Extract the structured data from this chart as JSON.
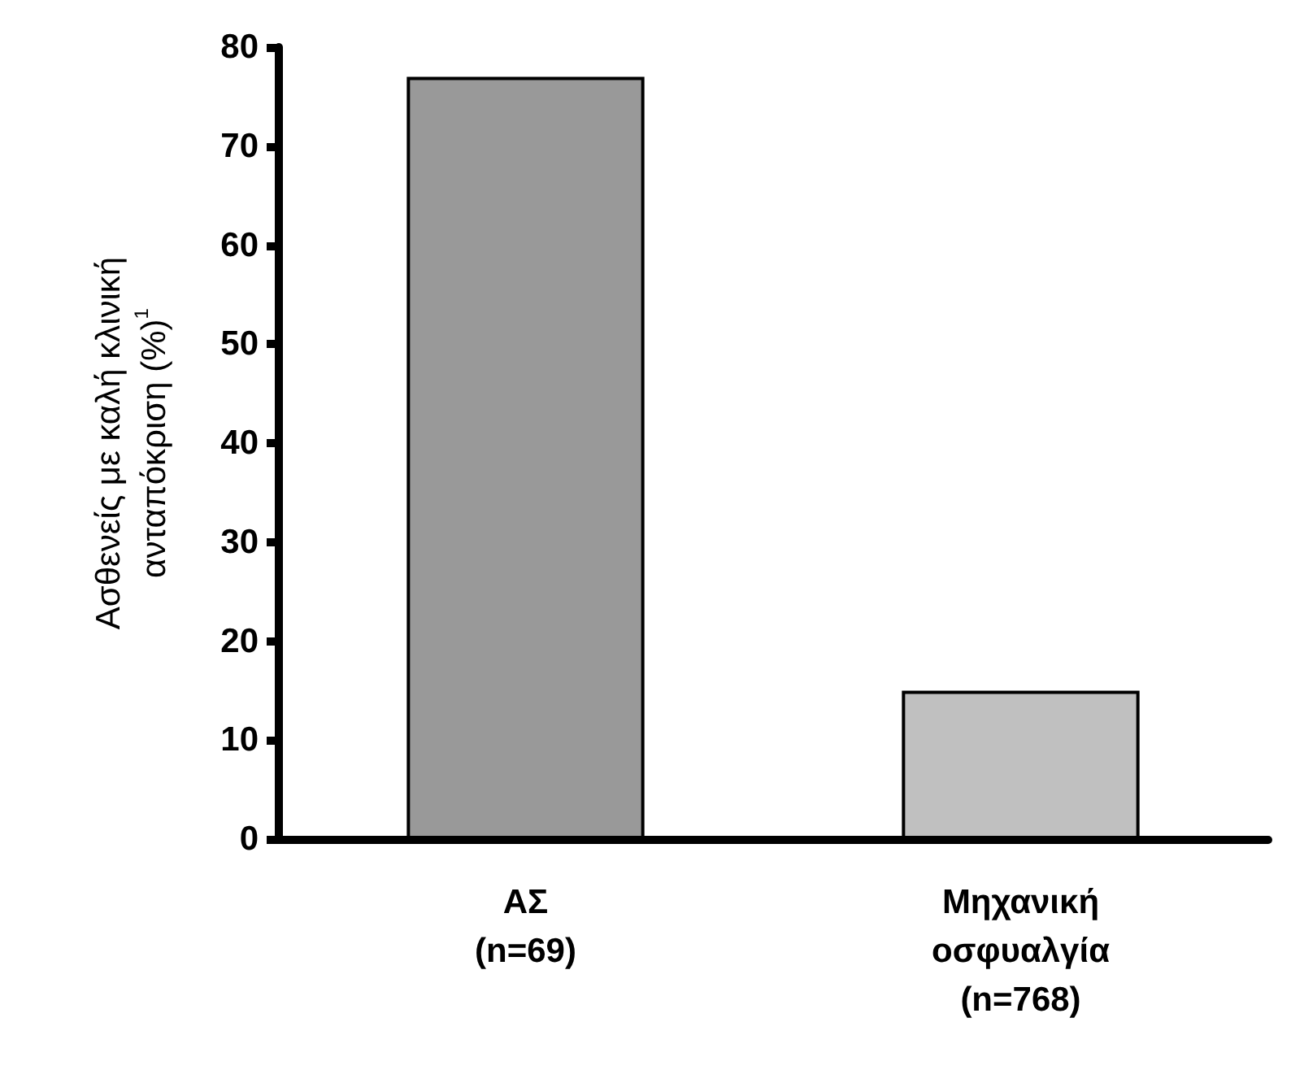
{
  "chart_data": {
    "type": "bar",
    "ylabel": "Ασθενείς με καλή κλινική\nανταπόκριση (%)$^{1}$",
    "categories": [
      "ΑΣ\n(n=69)",
      "Μηχανική\nοσφυαλγία\n(n=768)"
    ],
    "values": [
      77,
      15
    ],
    "colors": [
      "#999999",
      "#c0c0c0"
    ],
    "ylim": [
      0,
      80
    ],
    "yticks": [
      0,
      10,
      20,
      30,
      40,
      50,
      60,
      70,
      80
    ],
    "grid": false
  }
}
